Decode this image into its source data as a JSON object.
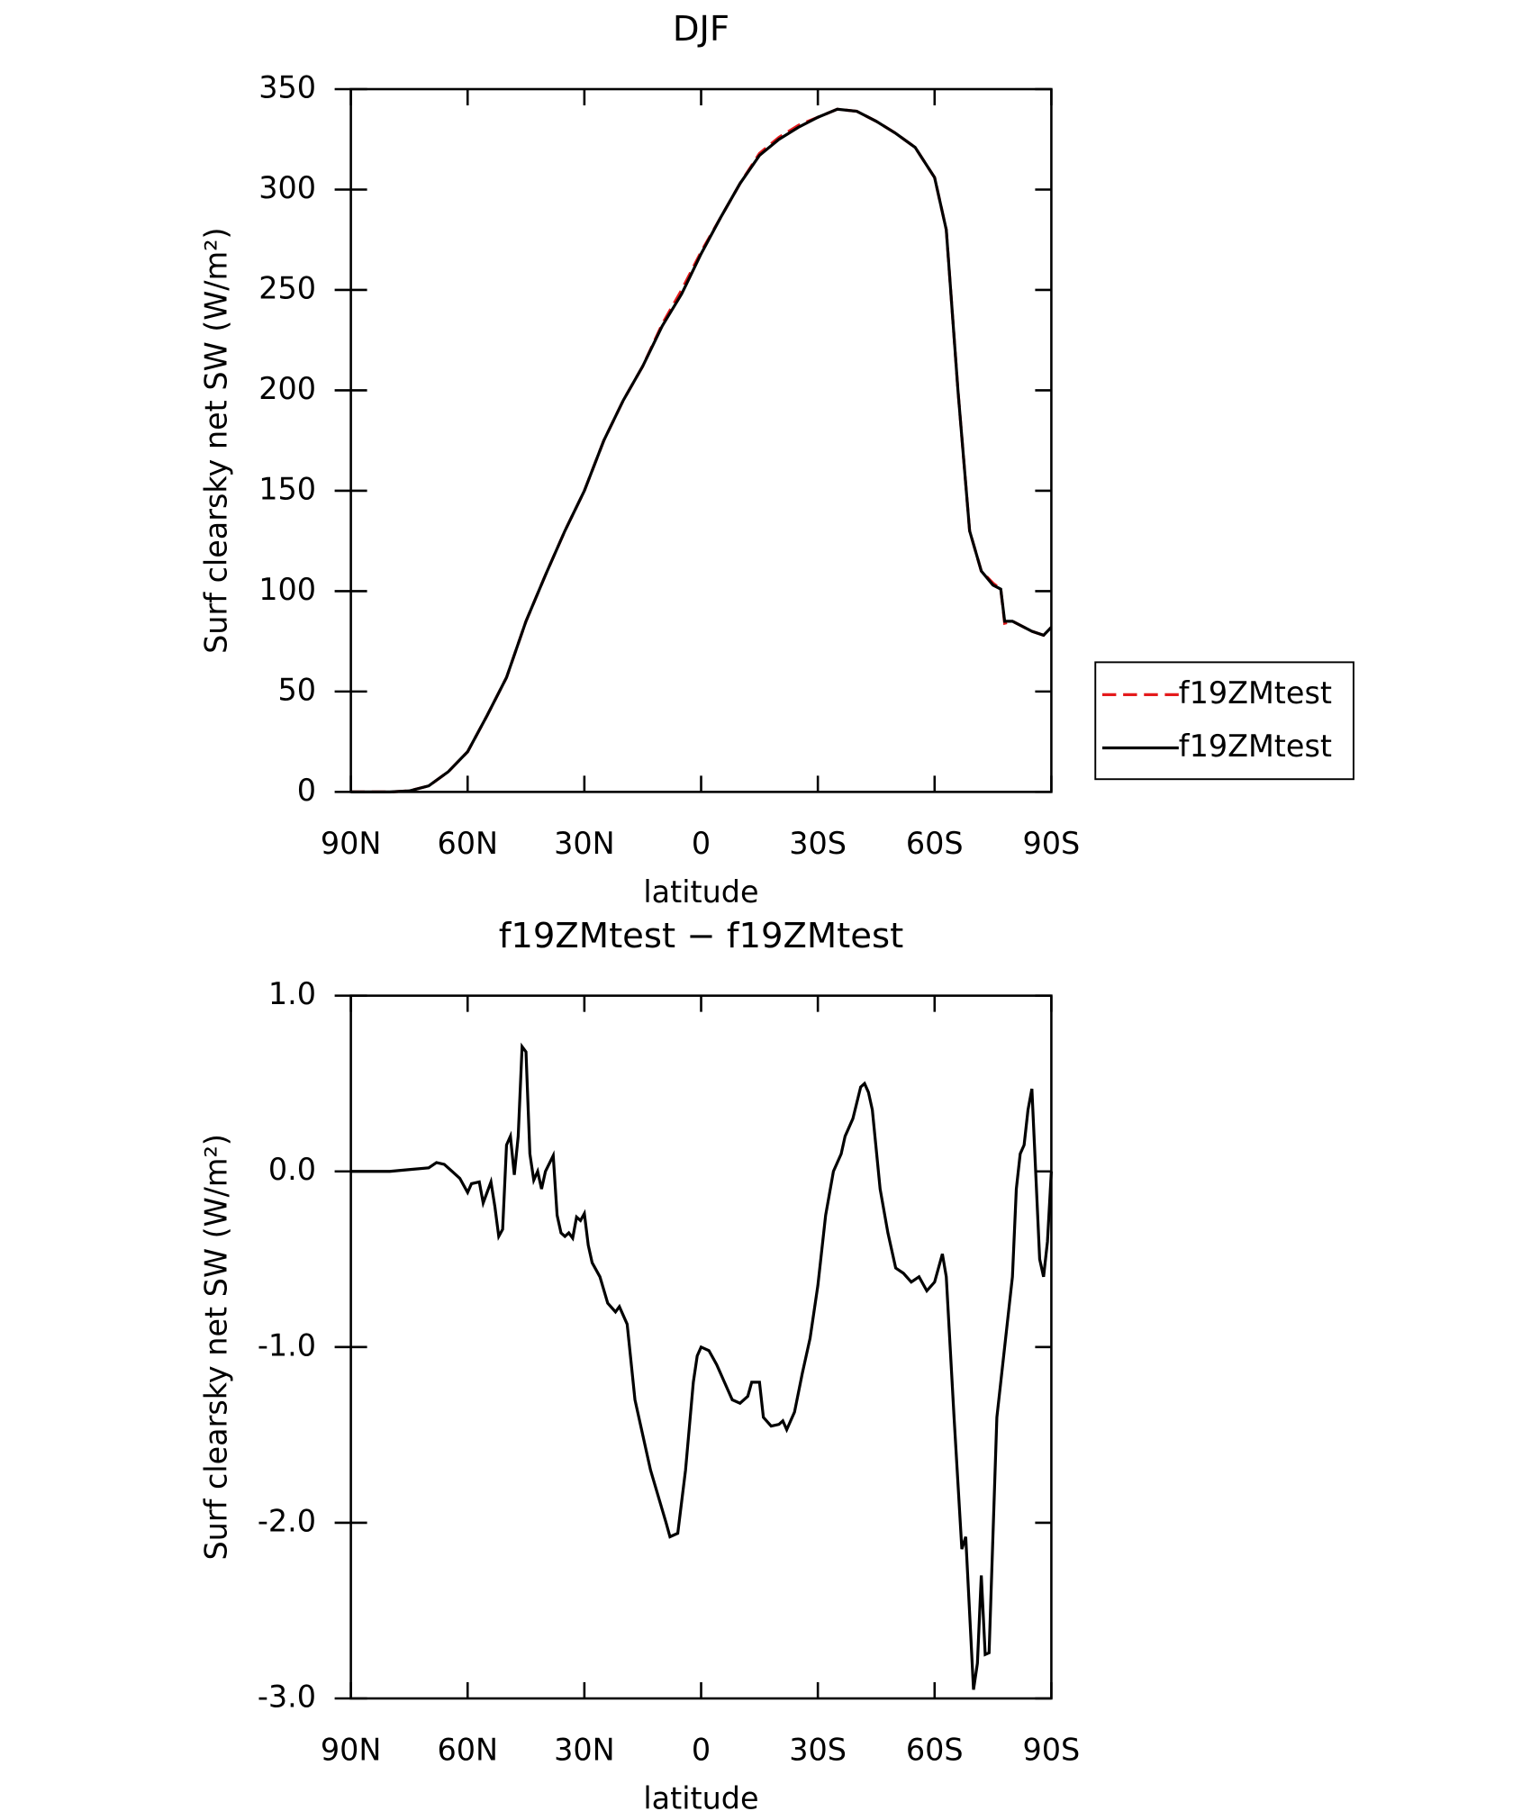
{
  "chart_data": [
    {
      "type": "line",
      "title": "DJF",
      "xlabel": "latitude",
      "ylabel": "Surf clearsky net SW (W/m²)",
      "x": [
        90,
        80,
        75,
        70,
        65,
        60,
        55,
        50,
        45,
        40,
        35,
        30,
        25,
        20,
        15,
        10,
        5,
        0,
        -5,
        -10,
        -15,
        -20,
        -25,
        -30,
        -35,
        -40,
        -45,
        -50,
        -55,
        -60,
        -63,
        -66,
        -69,
        -72,
        -75,
        -77,
        -78,
        -80,
        -85,
        -88,
        -90
      ],
      "series": [
        {
          "name": "f19ZMtest",
          "color": "#e41a1c",
          "dash": true,
          "values": [
            0,
            0,
            0.5,
            3,
            10,
            20,
            38,
            57,
            85,
            108,
            130,
            150,
            175,
            195,
            212,
            233,
            250,
            269,
            286,
            303,
            318,
            326,
            332,
            336,
            340,
            339,
            334,
            328,
            321,
            306,
            280,
            200,
            130,
            110,
            104,
            101,
            84,
            85,
            80,
            78,
            82
          ]
        },
        {
          "name": "f19ZMtest",
          "color": "#000000",
          "dash": false,
          "values": [
            0,
            0,
            0.5,
            3,
            10,
            20,
            38,
            57,
            85,
            108,
            130,
            150,
            175,
            195,
            212,
            232,
            248,
            268,
            286,
            303,
            317,
            325,
            331,
            336,
            340,
            339,
            334,
            328,
            321,
            306,
            280,
            200,
            130,
            110,
            103,
            101,
            85,
            85,
            80,
            78,
            82
          ]
        }
      ],
      "xlim": [
        90,
        -90
      ],
      "xticks": [
        {
          "value": 90,
          "label": "90N"
        },
        {
          "value": 60,
          "label": "60N"
        },
        {
          "value": 30,
          "label": "30N"
        },
        0,
        {
          "value": -30,
          "label": "30S"
        },
        {
          "value": -60,
          "label": "60S"
        },
        {
          "value": -90,
          "label": "90S"
        }
      ],
      "ylim": [
        0,
        350
      ],
      "yticks": [
        0,
        50,
        100,
        150,
        200,
        250,
        300,
        350
      ],
      "legend": "right"
    },
    {
      "type": "line",
      "title": "f19ZMtest − f19ZMtest",
      "xlabel": "latitude",
      "ylabel": "Surf clearsky net SW (W/m²)",
      "x": [
        90,
        80,
        75,
        70,
        68,
        66,
        64,
        62,
        60,
        59,
        57,
        56,
        54,
        53,
        52,
        51,
        50,
        49,
        48,
        47,
        46,
        45,
        44,
        43,
        42,
        41,
        40,
        38,
        37,
        36,
        35,
        34,
        33,
        32,
        31,
        30,
        29,
        28,
        26,
        24,
        22,
        21,
        19,
        17,
        15,
        13,
        11,
        9,
        8,
        6,
        4,
        2,
        1,
        0,
        -2,
        -4,
        -6,
        -8,
        -10,
        -12,
        -13,
        -15,
        -16,
        -18,
        -20,
        -21,
        -22,
        -24,
        -26,
        -28,
        -30,
        -32,
        -34,
        -36,
        -37,
        -39,
        -41,
        -42,
        -43,
        -44,
        -46,
        -48,
        -50,
        -52,
        -54,
        -56,
        -58,
        -60,
        -62,
        -63,
        -65,
        -67,
        -68,
        -70,
        -71,
        -72,
        -73,
        -74,
        -76,
        -80,
        -81,
        -82,
        -83,
        -84,
        -85,
        -87,
        -88,
        -89,
        -90
      ],
      "series": [
        {
          "name": "f19ZMtest − f19ZMtest",
          "color": "#000000",
          "dash": false,
          "values": [
            0,
            0,
            0.01,
            0.02,
            0.05,
            0.04,
            0,
            -0.04,
            -0.12,
            -0.07,
            -0.06,
            -0.18,
            -0.06,
            -0.2,
            -0.37,
            -0.33,
            0.15,
            0.2,
            -0.02,
            0.2,
            0.71,
            0.68,
            0.1,
            -0.05,
            0,
            -0.1,
            0,
            0.09,
            -0.25,
            -0.35,
            -0.37,
            -0.35,
            -0.38,
            -0.26,
            -0.28,
            -0.24,
            -0.42,
            -0.52,
            -0.6,
            -0.75,
            -0.8,
            -0.77,
            -0.87,
            -1.3,
            -1.5,
            -1.7,
            -1.85,
            -2.0,
            -2.08,
            -2.06,
            -1.7,
            -1.2,
            -1.05,
            -1.0,
            -1.02,
            -1.1,
            -1.2,
            -1.3,
            -1.32,
            -1.28,
            -1.2,
            -1.2,
            -1.4,
            -1.45,
            -1.44,
            -1.42,
            -1.47,
            -1.37,
            -1.15,
            -0.95,
            -0.65,
            -0.25,
            0,
            0.1,
            0.2,
            0.3,
            0.48,
            0.5,
            0.45,
            0.35,
            -0.1,
            -0.35,
            -0.55,
            -0.58,
            -0.63,
            -0.6,
            -0.68,
            -0.63,
            -0.47,
            -0.6,
            -1.4,
            -2.15,
            -2.08,
            -2.95,
            -2.8,
            -2.3,
            -2.75,
            -2.74,
            -1.4,
            -0.6,
            -0.1,
            0.1,
            0.15,
            0.35,
            0.47,
            -0.5,
            -0.6,
            -0.4,
            0
          ]
        }
      ],
      "xlim": [
        90,
        -90
      ],
      "xticks": [
        {
          "value": 90,
          "label": "90N"
        },
        {
          "value": 60,
          "label": "60N"
        },
        {
          "value": 30,
          "label": "30N"
        },
        0,
        {
          "value": -30,
          "label": "30S"
        },
        {
          "value": -60,
          "label": "60S"
        },
        {
          "value": -90,
          "label": "90S"
        }
      ],
      "ylim": [
        -3,
        1
      ],
      "yticks": [
        {
          "value": -3,
          "label": "-3.0"
        },
        {
          "value": -2,
          "label": "-2.0"
        },
        {
          "value": -1,
          "label": "-1.0"
        },
        {
          "value": 0,
          "label": "0.0"
        },
        {
          "value": 1,
          "label": "1.0"
        }
      ]
    }
  ]
}
